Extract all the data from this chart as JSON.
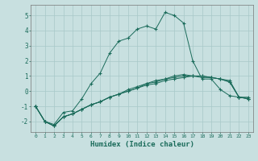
{
  "xlabel": "Humidex (Indice chaleur)",
  "bg_color": "#c8e0e0",
  "grid_color": "#a8c8c8",
  "line_color": "#1a6b5a",
  "xlim": [
    -0.5,
    23.5
  ],
  "ylim": [
    -2.7,
    5.7
  ],
  "yticks": [
    -2,
    -1,
    0,
    1,
    2,
    3,
    4,
    5
  ],
  "xticks": [
    0,
    1,
    2,
    3,
    4,
    5,
    6,
    7,
    8,
    9,
    10,
    11,
    12,
    13,
    14,
    15,
    16,
    17,
    18,
    19,
    20,
    21,
    22,
    23
  ],
  "series1_x": [
    0,
    1,
    2,
    3,
    4,
    5,
    6,
    7,
    8,
    9,
    10,
    11,
    12,
    13,
    14,
    15,
    16,
    17,
    18,
    19,
    20,
    21,
    22,
    23
  ],
  "series1_y": [
    -1.0,
    -2.0,
    -2.2,
    -1.4,
    -1.3,
    -0.5,
    0.5,
    1.2,
    2.5,
    3.3,
    3.5,
    4.1,
    4.3,
    4.1,
    5.2,
    5.0,
    4.5,
    2.0,
    0.8,
    0.8,
    0.1,
    -0.3,
    -0.4,
    -0.4
  ],
  "series2_x": [
    0,
    1,
    2,
    3,
    4,
    5,
    6,
    7,
    8,
    9,
    10,
    11,
    12,
    13,
    14,
    15,
    16,
    17,
    18,
    19,
    20,
    21,
    22,
    23
  ],
  "series2_y": [
    -1.0,
    -2.0,
    -2.3,
    -1.7,
    -1.5,
    -1.2,
    -0.9,
    -0.7,
    -0.4,
    -0.2,
    0.0,
    0.2,
    0.4,
    0.5,
    0.7,
    0.8,
    0.9,
    1.0,
    0.9,
    0.9,
    0.8,
    0.7,
    -0.4,
    -0.5
  ],
  "series3_x": [
    0,
    1,
    2,
    3,
    4,
    5,
    6,
    7,
    8,
    9,
    10,
    11,
    12,
    13,
    14,
    15,
    16,
    17,
    18,
    19,
    20,
    21,
    22,
    23
  ],
  "series3_y": [
    -1.0,
    -2.0,
    -2.3,
    -1.7,
    -1.5,
    -1.2,
    -0.9,
    -0.7,
    -0.4,
    -0.2,
    0.0,
    0.2,
    0.5,
    0.6,
    0.8,
    0.9,
    1.0,
    1.0,
    1.0,
    0.9,
    0.8,
    0.6,
    -0.4,
    -0.5
  ],
  "series4_x": [
    0,
    1,
    2,
    3,
    4,
    5,
    6,
    7,
    8,
    9,
    10,
    11,
    12,
    13,
    14,
    15,
    16,
    17,
    18,
    19,
    20,
    21,
    22,
    23
  ],
  "series4_y": [
    -1.0,
    -2.0,
    -2.3,
    -1.7,
    -1.5,
    -1.2,
    -0.9,
    -0.7,
    -0.4,
    -0.2,
    0.1,
    0.3,
    0.5,
    0.7,
    0.8,
    1.0,
    1.1,
    1.0,
    1.0,
    0.9,
    0.8,
    0.6,
    -0.4,
    -0.5
  ]
}
